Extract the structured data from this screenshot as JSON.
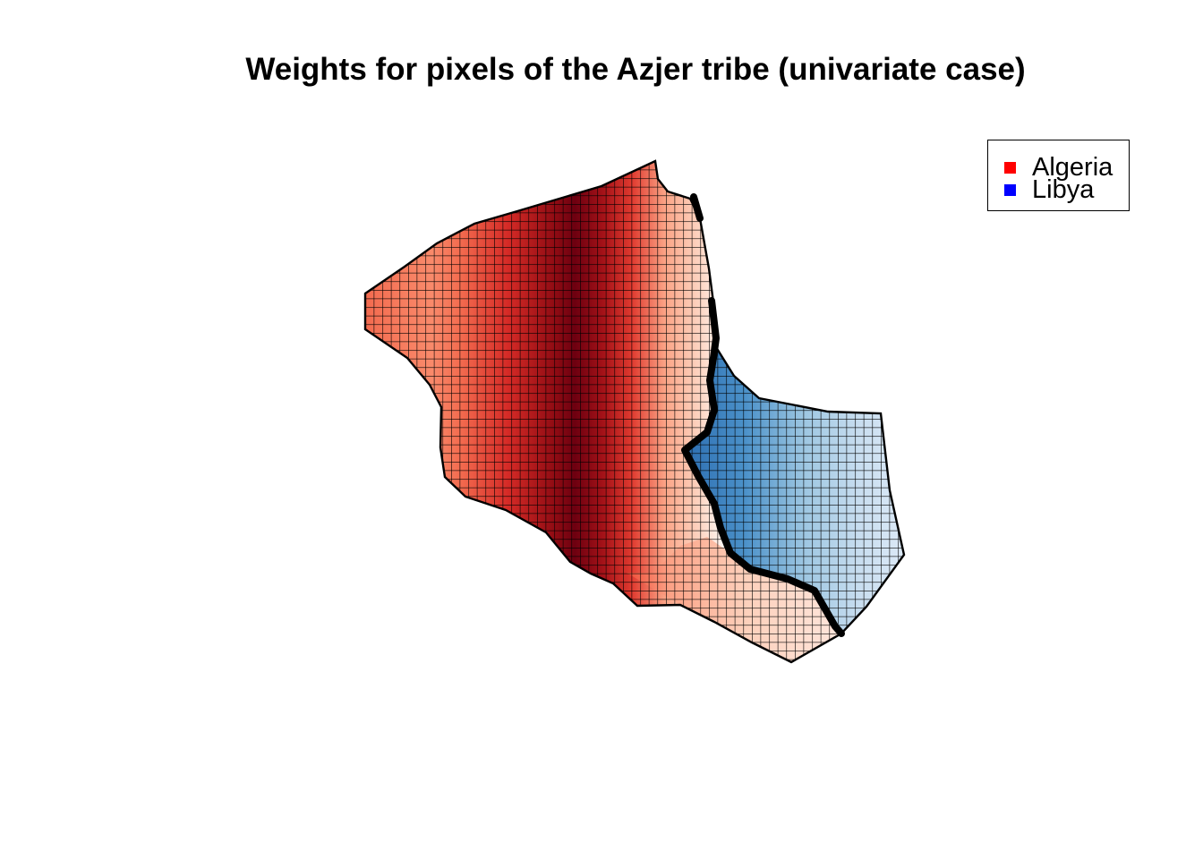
{
  "title": "Weights for pixels of the Azjer tribe (univariate case)",
  "legend": {
    "position": "top-right",
    "items": [
      {
        "label": "Algeria",
        "color": "#ff0000"
      },
      {
        "label": "Libya",
        "color": "#0000ff"
      }
    ]
  },
  "map": {
    "regions": [
      {
        "name": "Algeria",
        "palette": "reds",
        "colors": [
          "#fff5f0",
          "#fdbba1",
          "#f6553c",
          "#ca181d",
          "#67000d"
        ]
      },
      {
        "name": "Libya",
        "palette": "blues",
        "colors": [
          "#f7fbff",
          "#bdd7e7",
          "#6baed6",
          "#3a82bd",
          "#08519c"
        ]
      }
    ],
    "grid": true
  }
}
